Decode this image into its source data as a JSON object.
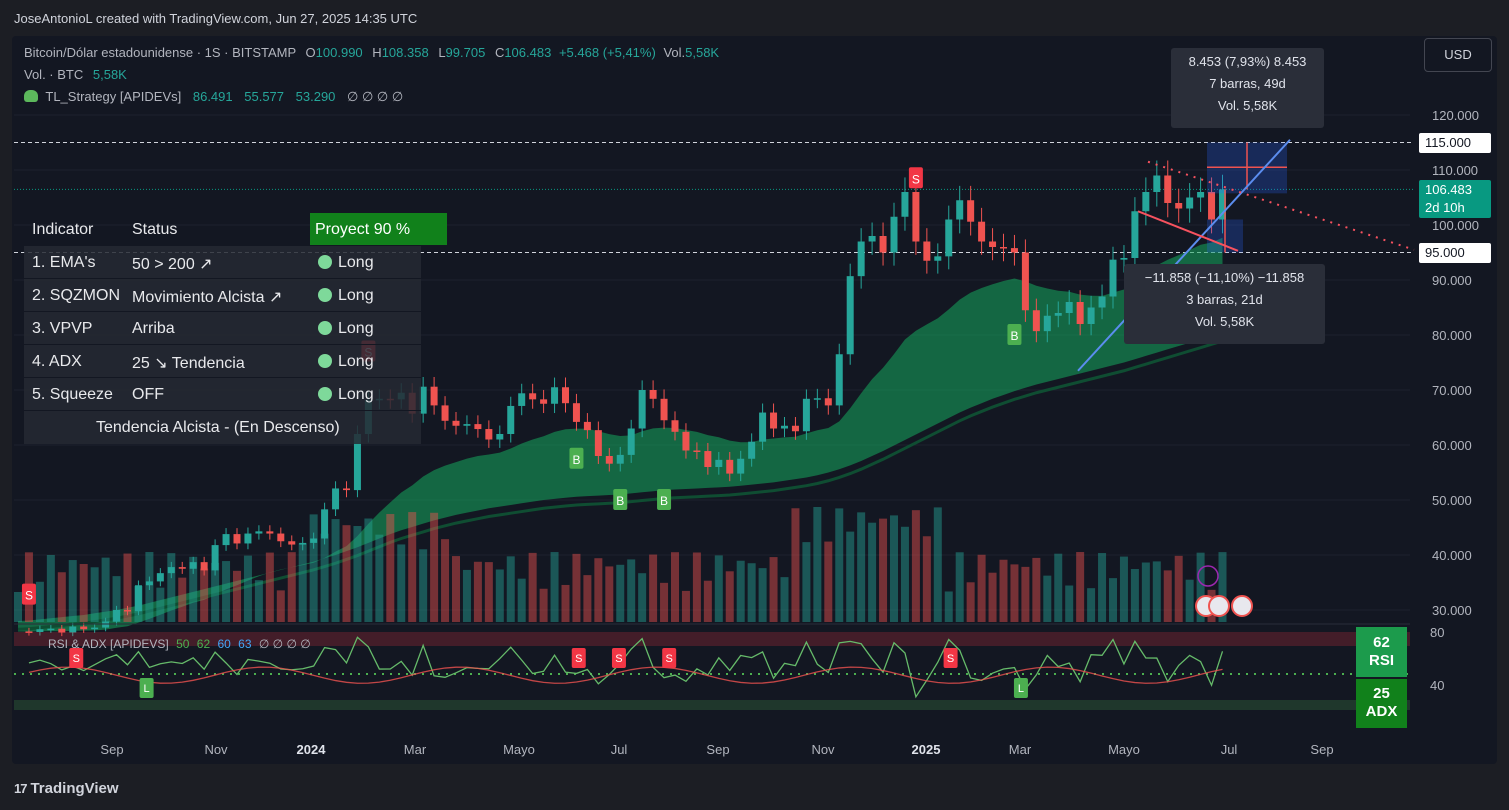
{
  "header": {
    "credit": "JoseAntonioL created with TradingView.com, Jun 27, 2025 14:35 UTC"
  },
  "footer": {
    "brand": "TradingView",
    "brand_mark": "17"
  },
  "currency_button": "USD",
  "legend": {
    "symbol": "Bitcoin/Dólar estadounidense · 1S · BITSTAMP",
    "o_label": "O",
    "o_value": "100.990",
    "h_label": "H",
    "h_value": "108.358",
    "l_label": "L",
    "l_value": "99.705",
    "c_label": "C",
    "c_value": "106.483",
    "change": "+5.468 (+5,41%)",
    "vol_label": "Vol.",
    "vol_value": "5,58K",
    "vol_row_label": "Vol. · BTC",
    "vol_row_value": "5,58K",
    "strategy_name": "TL_Strategy [APIDEVs]",
    "strategy_values": [
      "86.491",
      "55.577",
      "53.290"
    ],
    "strategy_empty": "∅ ∅ ∅ ∅"
  },
  "indicator_table": {
    "headers": [
      "Indicator",
      "Status"
    ],
    "projection": "Proyect 90 %",
    "rows": [
      {
        "indicator": "1. EMA's",
        "status": "50 > 200 ↗",
        "signal": "Long"
      },
      {
        "indicator": "2. SQZMON",
        "status": "Movimiento Alcista ↗",
        "signal": "Long"
      },
      {
        "indicator": "3. VPVP",
        "status": "Arriba",
        "signal": "Long"
      },
      {
        "indicator": "4. ADX",
        "status": "25 ↘ Tendencia",
        "signal": "Long"
      },
      {
        "indicator": "5. Squeeze",
        "status": "OFF",
        "signal": "Long"
      }
    ],
    "footer": "Tendencia Alcista - (En Descenso)"
  },
  "measure_up": {
    "line1": "8.453 (7,93%) 8.453",
    "line2": "7 barras, 49d",
    "line3": "Vol. 5,58K"
  },
  "measure_down": {
    "line1": "−11.858 (−11,10%) −11.858",
    "line2": "3 barras, 21d",
    "line3": "Vol. 5,58K"
  },
  "price_tags": {
    "level_high": "115.000",
    "current": "106.483",
    "countdown": "2d 10h",
    "level_low": "95.000"
  },
  "oscillator": {
    "title": "RSI & ADX [APIDEVS]",
    "values": [
      "50",
      "62",
      "60",
      "63"
    ],
    "empty": "∅ ∅ ∅ ∅",
    "rsi_value": "62",
    "rsi_label": "RSI",
    "adx_value": "25",
    "adx_label": "ADX",
    "axis_ticks": [
      "80",
      "40"
    ]
  },
  "chart_data": {
    "type": "candlestick",
    "price_axis_ticks": [
      120000,
      110000,
      100000,
      90000,
      80000,
      70000,
      60000,
      50000,
      40000,
      30000
    ],
    "price_axis_labels": [
      "120.000",
      "110.000",
      "100.000",
      "90.000",
      "80.000",
      "70.000",
      "60.000",
      "50.000",
      "40.000",
      "30.000"
    ],
    "price_range": [
      28000,
      125000
    ],
    "time_axis_labels": [
      {
        "label": "Sep",
        "bold": false
      },
      {
        "label": "Nov",
        "bold": false
      },
      {
        "label": "2024",
        "bold": true
      },
      {
        "label": "Mar",
        "bold": false
      },
      {
        "label": "Mayo",
        "bold": false
      },
      {
        "label": "Jul",
        "bold": false
      },
      {
        "label": "Sep",
        "bold": false
      },
      {
        "label": "Nov",
        "bold": false
      },
      {
        "label": "2025",
        "bold": true
      },
      {
        "label": "Mar",
        "bold": false
      },
      {
        "label": "Mayo",
        "bold": false
      },
      {
        "label": "Jul",
        "bold": false
      },
      {
        "label": "Sep",
        "bold": false
      }
    ],
    "horizontal_levels": [
      115000,
      95000
    ],
    "current_price": 106483,
    "closes": [
      26100,
      26000,
      26500,
      26600,
      25900,
      27000,
      26500,
      26800,
      27900,
      30000,
      29800,
      34500,
      35200,
      36700,
      37800,
      37500,
      38700,
      37200,
      41800,
      43800,
      42100,
      43900,
      44300,
      43900,
      42500,
      41900,
      42200,
      43000,
      48300,
      52100,
      51800,
      62000,
      68200,
      68400,
      68300,
      69500,
      65700,
      70600,
      67200,
      64400,
      63500,
      63800,
      62900,
      61000,
      62000,
      67100,
      69400,
      68300,
      67500,
      70500,
      67600,
      64200,
      62700,
      58000,
      56600,
      58200,
      63000,
      70000,
      68400,
      64500,
      62400,
      59000,
      58900,
      56000,
      57300,
      54800,
      57500,
      60600,
      65900,
      63000,
      63500,
      62500,
      68400,
      68500,
      67200,
      76500,
      90700,
      97000,
      98000,
      95000,
      101500,
      106000,
      97000,
      93500,
      94300,
      101000,
      104500,
      100600,
      97000,
      96000,
      95800,
      95000,
      84500,
      80700,
      83500,
      84000,
      86000,
      82000,
      85000,
      87000,
      93700,
      94000,
      102500,
      106000,
      109000,
      104000,
      103000,
      105000,
      106000,
      101000,
      106483
    ],
    "ema_slow": [
      28000,
      28100,
      28300,
      28500,
      28700,
      28900,
      29100,
      29400,
      29700,
      30000,
      30400,
      30800,
      31300,
      31800,
      32300,
      32800,
      33300,
      33800,
      34300,
      34800,
      35300,
      35800,
      36300,
      36800,
      37300,
      37800,
      38300,
      38800,
      39400,
      40000,
      40700,
      41400,
      42200,
      43000,
      43800,
      44500,
      45100,
      45700,
      46300,
      46800,
      47300,
      47700,
      48100,
      48500,
      48800,
      49100,
      49400,
      49700,
      50000,
      50200,
      50400,
      50600,
      50700,
      50800,
      50900,
      51000,
      51200,
      51400,
      51600,
      51800,
      51900,
      52000,
      52100,
      52200,
      52300,
      52400,
      52600,
      52800,
      53000,
      53200,
      53500,
      53800,
      54100,
      54500,
      55000,
      55600,
      56300,
      57100,
      58000,
      58900,
      59900,
      60900,
      61900,
      62900,
      63900,
      64900,
      65900,
      66800,
      67600,
      68400,
      69100,
      69800,
      70400,
      71000,
      71500,
      72000,
      72500,
      73000,
      73500,
      74000,
      74500,
      75000,
      75600,
      76200,
      76800,
      77400,
      78000,
      78600,
      79200,
      79800,
      80400
    ],
    "rsi_level": 62,
    "adx_level": 25,
    "markers": [
      {
        "type": "S",
        "bar": 1,
        "price": 32800
      },
      {
        "type": "S",
        "bar": 32,
        "price": 77000
      },
      {
        "type": "B",
        "bar": 51,
        "price": 57500
      },
      {
        "type": "B",
        "bar": 55,
        "price": 50000
      },
      {
        "type": "B",
        "bar": 59,
        "price": 50000
      },
      {
        "type": "S",
        "bar": 82,
        "price": 108500
      },
      {
        "type": "B",
        "bar": 91,
        "price": 80000
      }
    ]
  }
}
